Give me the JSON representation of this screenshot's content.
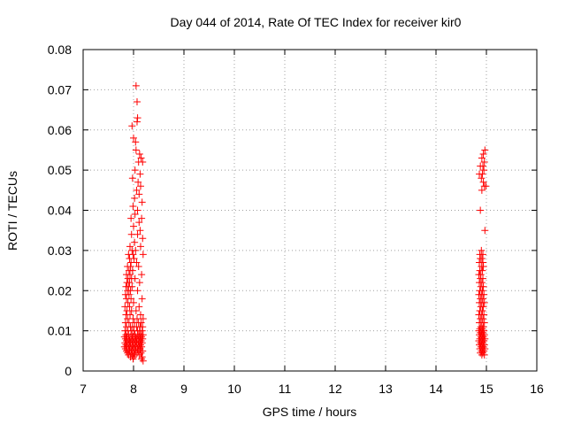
{
  "chart_data": {
    "type": "scatter",
    "title": "Day 044 of 2014, Rate Of TEC Index for receiver kir0",
    "xlabel": "GPS time / hours",
    "ylabel": "ROTI / TECUs",
    "xlim": [
      7,
      16
    ],
    "ylim": [
      0,
      0.08
    ],
    "xticks": [
      "7",
      "8",
      "9",
      "10",
      "11",
      "12",
      "13",
      "14",
      "15",
      "16"
    ],
    "yticks": [
      "0",
      "0.01",
      "0.02",
      "0.03",
      "0.04",
      "0.05",
      "0.06",
      "0.07",
      "0.08"
    ],
    "grid": true,
    "marker": "+",
    "color": "#ff0000",
    "series": [
      {
        "name": "ROTI",
        "points": [
          [
            8.05,
            0.071
          ],
          [
            8.07,
            0.067
          ],
          [
            8.08,
            0.063
          ],
          [
            8.07,
            0.062
          ],
          [
            7.97,
            0.061
          ],
          [
            8.0,
            0.058
          ],
          [
            8.04,
            0.057
          ],
          [
            8.05,
            0.055
          ],
          [
            8.12,
            0.054
          ],
          [
            8.15,
            0.053
          ],
          [
            8.1,
            0.052
          ],
          [
            8.18,
            0.052
          ],
          [
            8.03,
            0.05
          ],
          [
            8.13,
            0.049
          ],
          [
            7.98,
            0.048
          ],
          [
            8.09,
            0.047
          ],
          [
            8.14,
            0.046
          ],
          [
            8.06,
            0.045
          ],
          [
            8.11,
            0.044
          ],
          [
            8.02,
            0.043
          ],
          [
            8.17,
            0.042
          ],
          [
            7.99,
            0.041
          ],
          [
            8.08,
            0.04
          ],
          [
            8.03,
            0.039
          ],
          [
            7.95,
            0.038
          ],
          [
            8.16,
            0.038
          ],
          [
            8.11,
            0.037
          ],
          [
            8.0,
            0.036
          ],
          [
            8.13,
            0.035
          ],
          [
            7.96,
            0.034
          ],
          [
            8.08,
            0.034
          ],
          [
            8.18,
            0.033
          ],
          [
            8.02,
            0.032
          ],
          [
            7.93,
            0.031
          ],
          [
            8.14,
            0.031
          ],
          [
            7.97,
            0.03
          ],
          [
            8.04,
            0.03
          ],
          [
            7.9,
            0.029
          ],
          [
            7.99,
            0.029
          ],
          [
            8.19,
            0.029
          ],
          [
            7.92,
            0.028
          ],
          [
            8.01,
            0.028
          ],
          [
            7.95,
            0.027
          ],
          [
            8.06,
            0.027
          ],
          [
            7.88,
            0.026
          ],
          [
            7.94,
            0.026
          ],
          [
            8.1,
            0.026
          ],
          [
            7.91,
            0.025
          ],
          [
            7.98,
            0.025
          ],
          [
            7.86,
            0.024
          ],
          [
            7.93,
            0.024
          ],
          [
            8.16,
            0.024
          ],
          [
            7.89,
            0.023
          ],
          [
            7.96,
            0.023
          ],
          [
            8.03,
            0.023
          ],
          [
            7.87,
            0.022
          ],
          [
            7.92,
            0.022
          ],
          [
            8.12,
            0.022
          ],
          [
            7.85,
            0.021
          ],
          [
            7.9,
            0.021
          ],
          [
            7.97,
            0.021
          ],
          [
            7.88,
            0.02
          ],
          [
            7.94,
            0.02
          ],
          [
            8.08,
            0.02
          ],
          [
            7.84,
            0.019
          ],
          [
            7.91,
            0.019
          ],
          [
            7.86,
            0.018
          ],
          [
            7.95,
            0.018
          ],
          [
            8.17,
            0.018
          ],
          [
            7.89,
            0.017
          ],
          [
            8.0,
            0.017
          ],
          [
            7.83,
            0.016
          ],
          [
            7.92,
            0.016
          ],
          [
            8.11,
            0.016
          ],
          [
            7.87,
            0.015
          ],
          [
            7.96,
            0.015
          ],
          [
            8.05,
            0.015
          ],
          [
            7.85,
            0.014
          ],
          [
            7.93,
            0.014
          ],
          [
            8.14,
            0.014
          ],
          [
            7.88,
            0.013
          ],
          [
            7.99,
            0.013
          ],
          [
            8.07,
            0.013
          ],
          [
            8.19,
            0.013
          ],
          [
            7.84,
            0.012
          ],
          [
            7.91,
            0.012
          ],
          [
            8.02,
            0.012
          ],
          [
            8.1,
            0.012
          ],
          [
            8.15,
            0.012
          ],
          [
            7.86,
            0.011
          ],
          [
            7.94,
            0.011
          ],
          [
            7.98,
            0.011
          ],
          [
            8.06,
            0.011
          ],
          [
            8.13,
            0.011
          ],
          [
            8.18,
            0.011
          ],
          [
            7.83,
            0.01
          ],
          [
            7.89,
            0.01
          ],
          [
            7.95,
            0.01
          ],
          [
            8.01,
            0.01
          ],
          [
            8.08,
            0.01
          ],
          [
            8.12,
            0.01
          ],
          [
            8.17,
            0.01
          ],
          [
            7.85,
            0.009
          ],
          [
            7.9,
            0.009
          ],
          [
            7.97,
            0.009
          ],
          [
            8.03,
            0.009
          ],
          [
            8.09,
            0.009
          ],
          [
            8.14,
            0.009
          ],
          [
            8.19,
            0.009
          ],
          [
            7.82,
            0.0085
          ],
          [
            7.87,
            0.0085
          ],
          [
            7.93,
            0.0085
          ],
          [
            7.99,
            0.0085
          ],
          [
            8.05,
            0.0085
          ],
          [
            8.11,
            0.0085
          ],
          [
            8.16,
            0.0085
          ],
          [
            7.84,
            0.008
          ],
          [
            7.9,
            0.008
          ],
          [
            7.96,
            0.008
          ],
          [
            8.02,
            0.008
          ],
          [
            8.07,
            0.008
          ],
          [
            8.13,
            0.008
          ],
          [
            8.18,
            0.008
          ],
          [
            7.86,
            0.0075
          ],
          [
            7.92,
            0.0075
          ],
          [
            7.98,
            0.0075
          ],
          [
            8.04,
            0.0075
          ],
          [
            8.1,
            0.0075
          ],
          [
            8.15,
            0.0075
          ],
          [
            7.83,
            0.007
          ],
          [
            7.88,
            0.007
          ],
          [
            7.94,
            0.007
          ],
          [
            8.0,
            0.007
          ],
          [
            8.06,
            0.007
          ],
          [
            8.12,
            0.007
          ],
          [
            8.17,
            0.007
          ],
          [
            7.85,
            0.0065
          ],
          [
            7.91,
            0.0065
          ],
          [
            7.97,
            0.0065
          ],
          [
            8.03,
            0.0065
          ],
          [
            8.09,
            0.0065
          ],
          [
            8.14,
            0.0065
          ],
          [
            7.82,
            0.006
          ],
          [
            7.87,
            0.006
          ],
          [
            7.93,
            0.006
          ],
          [
            7.99,
            0.006
          ],
          [
            8.05,
            0.006
          ],
          [
            8.11,
            0.006
          ],
          [
            8.16,
            0.006
          ],
          [
            7.84,
            0.0055
          ],
          [
            7.9,
            0.0055
          ],
          [
            7.96,
            0.0055
          ],
          [
            8.02,
            0.0055
          ],
          [
            8.08,
            0.0055
          ],
          [
            8.13,
            0.0055
          ],
          [
            7.86,
            0.005
          ],
          [
            7.92,
            0.005
          ],
          [
            7.98,
            0.005
          ],
          [
            8.04,
            0.005
          ],
          [
            8.1,
            0.005
          ],
          [
            8.18,
            0.005
          ],
          [
            7.88,
            0.0045
          ],
          [
            7.95,
            0.0045
          ],
          [
            8.01,
            0.0045
          ],
          [
            8.07,
            0.0045
          ],
          [
            8.15,
            0.0045
          ],
          [
            7.9,
            0.004
          ],
          [
            7.97,
            0.004
          ],
          [
            8.03,
            0.004
          ],
          [
            8.12,
            0.004
          ],
          [
            7.94,
            0.0035
          ],
          [
            8.0,
            0.0035
          ],
          [
            8.17,
            0.0035
          ],
          [
            7.99,
            0.003
          ],
          [
            8.16,
            0.003
          ],
          [
            8.19,
            0.0025
          ],
          [
            14.97,
            0.055
          ],
          [
            14.94,
            0.054
          ],
          [
            14.91,
            0.053
          ],
          [
            14.96,
            0.052
          ],
          [
            14.88,
            0.051
          ],
          [
            14.93,
            0.051
          ],
          [
            14.95,
            0.05
          ],
          [
            14.86,
            0.049
          ],
          [
            14.92,
            0.049
          ],
          [
            14.9,
            0.048
          ],
          [
            14.94,
            0.047
          ],
          [
            14.99,
            0.046
          ],
          [
            14.96,
            0.046
          ],
          [
            14.91,
            0.045
          ],
          [
            14.88,
            0.04
          ],
          [
            14.97,
            0.035
          ],
          [
            14.9,
            0.03
          ],
          [
            14.93,
            0.029
          ],
          [
            14.87,
            0.029
          ],
          [
            14.91,
            0.028
          ],
          [
            14.88,
            0.028
          ],
          [
            14.93,
            0.027
          ],
          [
            14.86,
            0.027
          ],
          [
            14.9,
            0.026
          ],
          [
            14.94,
            0.026
          ],
          [
            14.87,
            0.025
          ],
          [
            14.92,
            0.025
          ],
          [
            14.89,
            0.024
          ],
          [
            14.85,
            0.024
          ],
          [
            14.93,
            0.023
          ],
          [
            14.88,
            0.023
          ],
          [
            14.91,
            0.022
          ],
          [
            14.86,
            0.022
          ],
          [
            14.94,
            0.021
          ],
          [
            14.89,
            0.021
          ],
          [
            14.87,
            0.02
          ],
          [
            14.92,
            0.02
          ],
          [
            14.85,
            0.019
          ],
          [
            14.9,
            0.019
          ],
          [
            14.95,
            0.019
          ],
          [
            14.88,
            0.018
          ],
          [
            14.93,
            0.018
          ],
          [
            14.86,
            0.017
          ],
          [
            14.91,
            0.017
          ],
          [
            14.96,
            0.017
          ],
          [
            14.89,
            0.016
          ],
          [
            14.94,
            0.016
          ],
          [
            14.87,
            0.015
          ],
          [
            14.92,
            0.015
          ],
          [
            14.85,
            0.014
          ],
          [
            14.9,
            0.014
          ],
          [
            14.95,
            0.014
          ],
          [
            14.88,
            0.013
          ],
          [
            14.93,
            0.013
          ],
          [
            14.86,
            0.012
          ],
          [
            14.91,
            0.012
          ],
          [
            14.96,
            0.012
          ],
          [
            14.89,
            0.011
          ],
          [
            14.94,
            0.011
          ],
          [
            14.87,
            0.0105
          ],
          [
            14.92,
            0.0105
          ],
          [
            14.85,
            0.01
          ],
          [
            14.9,
            0.01
          ],
          [
            14.95,
            0.01
          ],
          [
            14.88,
            0.0095
          ],
          [
            14.93,
            0.0095
          ],
          [
            14.86,
            0.009
          ],
          [
            14.91,
            0.009
          ],
          [
            14.96,
            0.009
          ],
          [
            14.89,
            0.0085
          ],
          [
            14.94,
            0.0085
          ],
          [
            14.87,
            0.008
          ],
          [
            14.92,
            0.008
          ],
          [
            14.97,
            0.008
          ],
          [
            14.85,
            0.0075
          ],
          [
            14.9,
            0.0075
          ],
          [
            14.95,
            0.0075
          ],
          [
            14.88,
            0.007
          ],
          [
            14.93,
            0.007
          ],
          [
            14.86,
            0.0065
          ],
          [
            14.91,
            0.0065
          ],
          [
            14.96,
            0.0065
          ],
          [
            14.89,
            0.006
          ],
          [
            14.94,
            0.006
          ],
          [
            14.87,
            0.0055
          ],
          [
            14.92,
            0.0055
          ],
          [
            14.97,
            0.0055
          ],
          [
            14.9,
            0.005
          ],
          [
            14.95,
            0.005
          ],
          [
            14.88,
            0.0045
          ],
          [
            14.93,
            0.0045
          ],
          [
            14.91,
            0.004
          ],
          [
            14.96,
            0.004
          ]
        ]
      }
    ]
  }
}
